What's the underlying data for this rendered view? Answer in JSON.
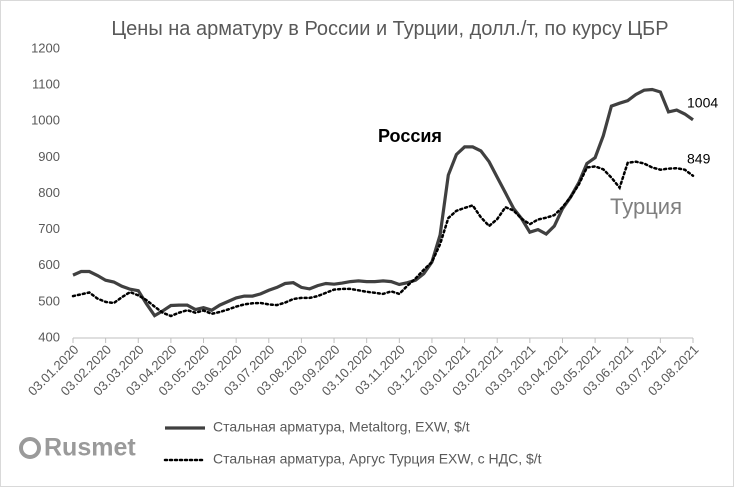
{
  "chart_data": {
    "type": "line",
    "title": "Цены на арматуру в России и Турции, долл./т, по курсу ЦБР",
    "categories": [
      "03.01.2020",
      null,
      null,
      null,
      "03.02.2020",
      null,
      null,
      null,
      "03.03.2020",
      null,
      null,
      null,
      "03.04.2020",
      null,
      null,
      null,
      "03.05.2020",
      null,
      null,
      null,
      "03.06.2020",
      null,
      null,
      null,
      "03.07.2020",
      null,
      null,
      null,
      "03.08.2020",
      null,
      null,
      null,
      "03.09.2020",
      null,
      null,
      null,
      "03.10.2020",
      null,
      null,
      null,
      "03.11.2020",
      null,
      null,
      null,
      "03.12.2020",
      null,
      null,
      null,
      "03.01.2021",
      null,
      null,
      null,
      "03.02.2021",
      null,
      null,
      null,
      "03.03.2021",
      null,
      null,
      null,
      "03.04.2021",
      null,
      null,
      null,
      "03.05.2021",
      null,
      null,
      null,
      "03.06.2021",
      null,
      null,
      null,
      "03.07.2021",
      null,
      null,
      null,
      "03.08.2021"
    ],
    "series": [
      {
        "name": "Стальная арматура, Metaltorg, EXW, $/t",
        "color": "#404040",
        "line_style": "solid",
        "values": [
          574,
          584,
          584,
          573,
          560,
          555,
          543,
          535,
          531,
          495,
          462,
          475,
          490,
          491,
          491,
          479,
          484,
          477,
          491,
          501,
          511,
          516,
          516,
          522,
          532,
          540,
          551,
          553,
          540,
          536,
          545,
          551,
          549,
          552,
          556,
          558,
          556,
          556,
          558,
          556,
          548,
          553,
          560,
          578,
          610,
          685,
          851,
          908,
          929,
          929,
          918,
          888,
          845,
          802,
          759,
          730,
          693,
          700,
          688,
          710,
          758,
          790,
          830,
          883,
          899,
          960,
          1042,
          1050,
          1057,
          1074,
          1086,
          1088,
          1081,
          1026,
          1031,
          1020,
          1004
        ]
      },
      {
        "name": "Стальная арматура, Аргус Турция EXW, с НДС, $/t",
        "color": "#000000",
        "line_style": "dotted",
        "values": [
          516,
          521,
          526,
          509,
          500,
          497,
          513,
          527,
          518,
          505,
          487,
          470,
          461,
          470,
          477,
          470,
          476,
          467,
          472,
          479,
          487,
          493,
          496,
          497,
          493,
          491,
          498,
          508,
          511,
          511,
          516,
          525,
          534,
          536,
          536,
          532,
          528,
          525,
          522,
          529,
          522,
          545,
          565,
          589,
          610,
          660,
          732,
          752,
          760,
          767,
          734,
          710,
          729,
          762,
          753,
          730,
          715,
          728,
          733,
          740,
          762,
          790,
          825,
          872,
          875,
          867,
          844,
          816,
          885,
          888,
          883,
          872,
          866,
          869,
          870,
          866,
          849
        ]
      }
    ],
    "annotations": [
      "Россия",
      "Турция"
    ],
    "watermark": "Rusmet",
    "ylim": [
      400,
      1200
    ],
    "yticks": [
      400,
      500,
      600,
      700,
      800,
      900,
      1000,
      1100,
      1200
    ],
    "grid": false
  }
}
